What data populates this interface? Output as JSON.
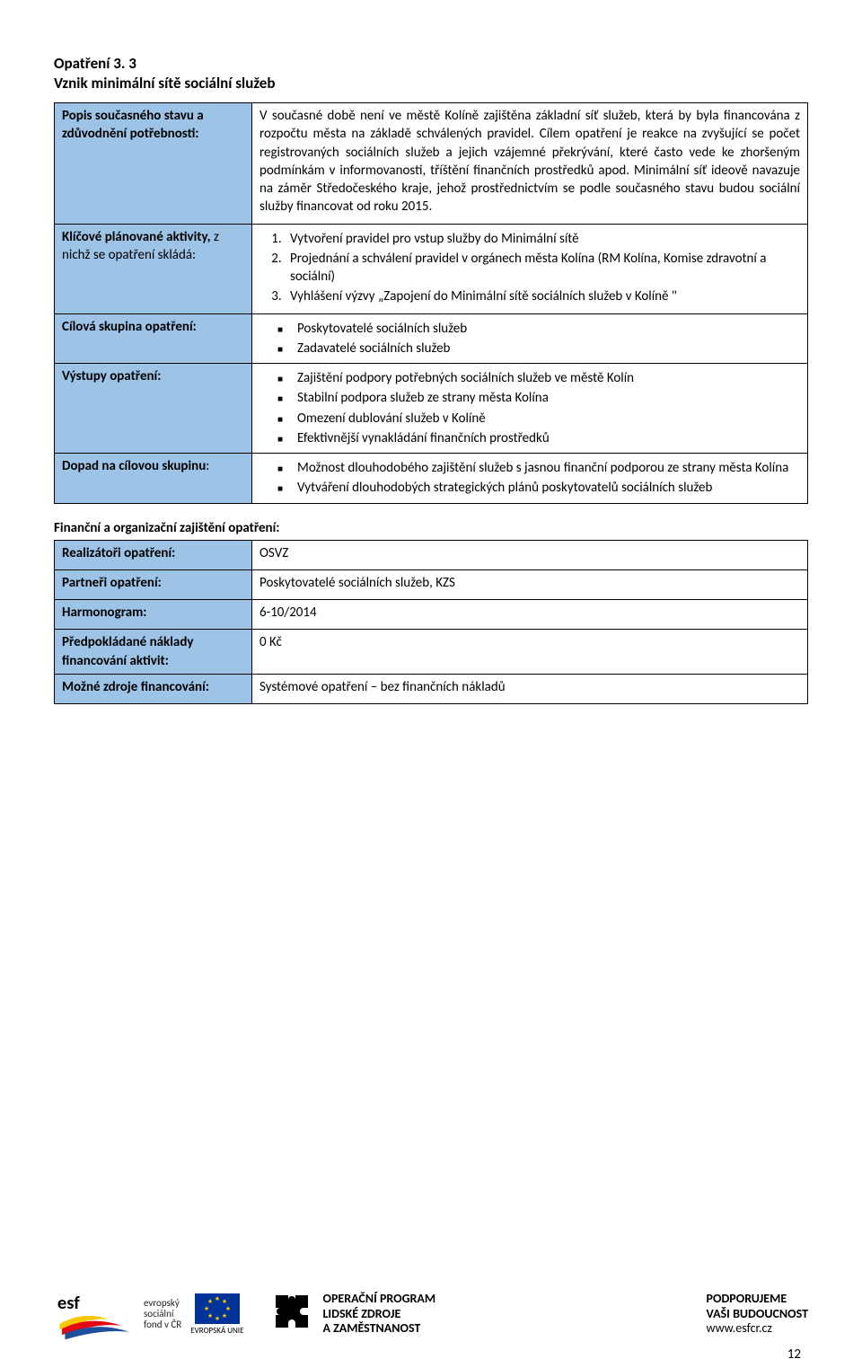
{
  "heading": {
    "line1": "Opatření 3. 3",
    "line2": "Vznik minimální sítě sociální služeb"
  },
  "table1": {
    "rows": [
      {
        "label_html": "<span class='b'>Popis současného stavu a zdůvodnění potřebnosti:</span>",
        "content_html": "<p class='just'>V současné době není ve městě Kolíně zajištěna základní síť služeb, která by byla financována z rozpočtu města na základě schválených pravidel. Cílem opatření je reakce na zvyšující se počet registrovaných sociálních služeb a jejich vzájemné překrývání, které často vede ke zhoršeným podmínkám v informovanosti, tříštění finančních prostředků apod. Minimální síť ideově navazuje na záměr Středočeského kraje, jehož prostřednictvím se podle současného stavu budou sociální služby financovat od roku 2015.</p>"
      },
      {
        "label_html": "<span class='b'>Klíčové plánované aktivity,</span> z nichž se opatření skládá:",
        "content_html": "<ol class='num'><li>Vytvoření pravidel pro vstup služby do Minimální sítě</li><li>Projednání a schválení pravidel v orgánech města Kolína (RM Kolína, Komise zdravotní a sociální)</li><li>Vyhlášení výzvy „Zapojení do Minimální sítě sociálních služeb v Kolíně \"</li></ol>"
      },
      {
        "label_html": "<span class='b'>Cílová skupina opatření:</span>",
        "content_html": "<ul class='sq'><li>Poskytovatelé sociálních služeb</li><li>Zadavatelé sociálních služeb</li></ul>"
      },
      {
        "label_html": "<span class='b'>Výstupy opatření:</span>",
        "content_html": "<ul class='sq'><li>Zajištění podpory potřebných sociálních služeb ve městě Kolín</li><li>Stabilní podpora služeb ze strany města Kolína</li><li>Omezení dublování služeb v Kolíně</li><li>Efektivnější vynakládání finančních prostředků</li></ul>"
      },
      {
        "label_html": "<span class='b'>Dopad na cílovou skupinu</span>:",
        "content_html": "<ul class='sq'><li>Možnost dlouhodobého zajištění služeb s jasnou finanční podporou ze strany města Kolína</li><li>Vytváření dlouhodobých strategických plánů poskytovatelů sociálních služeb</li></ul>"
      }
    ]
  },
  "section2_title": "Finanční a organizační zajištění opatření:",
  "table2": {
    "rows": [
      {
        "label_html": "<span class='b'>Realizátoři opatření:</span>",
        "content_html": "<p>OSVZ</p>"
      },
      {
        "label_html": "<span class='b'>Partneři opatření:</span>",
        "content_html": "<p>Poskytovatelé sociálních služeb, KZS</p>"
      },
      {
        "label_html": "<span class='b'>Harmonogram:</span>",
        "content_html": "<p>6-10/2014</p>"
      },
      {
        "label_html": "<span class='b'>Předpokládané náklady financování aktivit:</span>",
        "content_html": "<p>0 Kč</p>"
      },
      {
        "label_html": "<span class='b'>Možné zdroje financování:</span>",
        "content_html": "<p>Systémové opatření – bez finančních nákladů</p>"
      }
    ]
  },
  "footer": {
    "esf_lines": [
      "evropský",
      "sociální",
      "fond v ČR"
    ],
    "eu_label": "EVROPSKÁ UNIE",
    "op_lines": [
      "OPERAČNÍ PROGRAM",
      "LIDSKÉ ZDROJE",
      "A ZAMĚSTNANOST"
    ],
    "support_lines": [
      "PODPORUJEME",
      "VAŠI BUDOUCNOST",
      "www.esfcr.cz"
    ]
  },
  "page_number": "12",
  "colors": {
    "label_bg": "#9dc3e6",
    "border": "#000000",
    "swoosh_yellow": "#f7c800",
    "swoosh_red": "#e30613",
    "swoosh_blue": "#1d4f9c",
    "eu_blue": "#003399",
    "eu_gold": "#ffcc00"
  }
}
